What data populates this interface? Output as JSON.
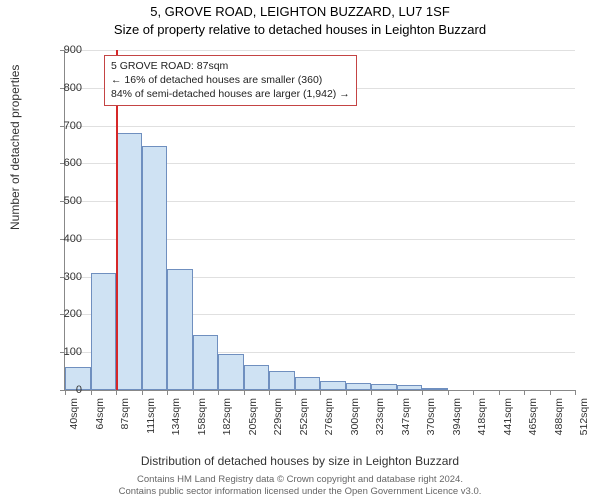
{
  "title_line1": "5, GROVE ROAD, LEIGHTON BUZZARD, LU7 1SF",
  "title_line2": "Size of property relative to detached houses in Leighton Buzzard",
  "xlabel": "Distribution of detached houses by size in Leighton Buzzard",
  "ylabel": "Number of detached properties",
  "footer_line1": "Contains HM Land Registry data © Crown copyright and database right 2024.",
  "footer_line2": "Contains public sector information licensed under the Open Government Licence v3.0.",
  "callout": {
    "line1": "5 GROVE ROAD: 87sqm",
    "line2": "← 16% of detached houses are smaller (360)",
    "line3": "84% of semi-detached houses are larger (1,942) →"
  },
  "chart": {
    "type": "histogram",
    "ylim": [
      0,
      900
    ],
    "ytick_step": 100,
    "xticks": [
      "40sqm",
      "64sqm",
      "87sqm",
      "111sqm",
      "134sqm",
      "158sqm",
      "182sqm",
      "205sqm",
      "229sqm",
      "252sqm",
      "276sqm",
      "300sqm",
      "323sqm",
      "347sqm",
      "370sqm",
      "394sqm",
      "418sqm",
      "441sqm",
      "465sqm",
      "488sqm",
      "512sqm"
    ],
    "bar_values": [
      60,
      310,
      680,
      645,
      320,
      145,
      95,
      65,
      50,
      35,
      25,
      18,
      15,
      12,
      6,
      0,
      0,
      0,
      0,
      0
    ],
    "bar_color": "#cfe2f3",
    "bar_border_color": "#6f8fbf",
    "grid_color": "#e0e0e0",
    "marker_color": "#d62728",
    "marker_bin_index": 2,
    "background_color": "#ffffff",
    "callout_border": "#c44444"
  }
}
